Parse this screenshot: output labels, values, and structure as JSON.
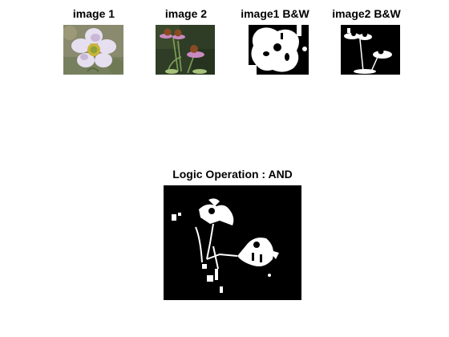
{
  "figure": {
    "subplots": [
      {
        "title": "image 1"
      },
      {
        "title": "image 2"
      },
      {
        "title": "image1 B&W"
      },
      {
        "title": "image2 B&W"
      }
    ],
    "result": {
      "title": "Logic Operation : AND"
    }
  }
}
